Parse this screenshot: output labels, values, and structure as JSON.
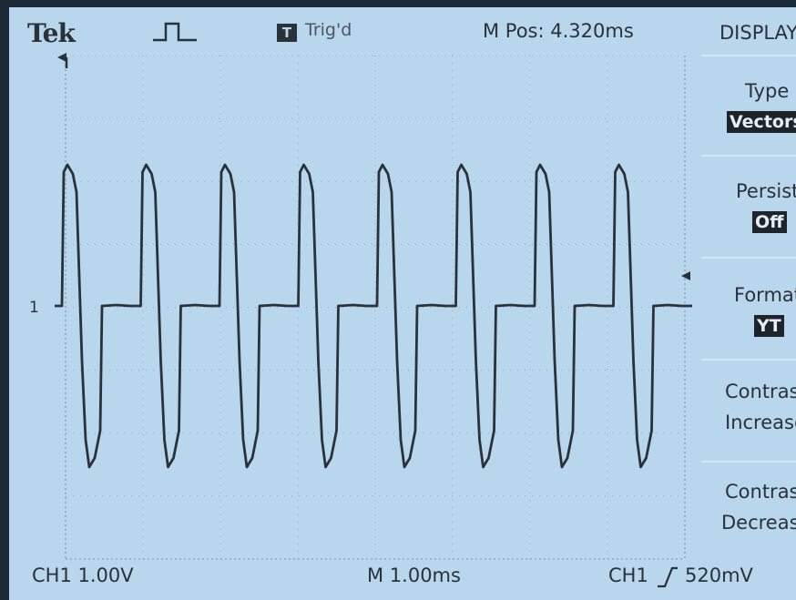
{
  "header": {
    "brand": "Tek",
    "trigger_status": "Trig'd",
    "trigger_icon": "T",
    "m_pos": "M Pos: 4.320ms",
    "menu_title": "DISPLAY"
  },
  "menu": {
    "items": [
      {
        "label": "Type",
        "value": "Vectors"
      },
      {
        "label": "Persist",
        "value": "Off"
      },
      {
        "label": "Format",
        "value": "YT"
      },
      {
        "label": "Contrast",
        "value2": "Increase"
      },
      {
        "label": "Contrast",
        "value2": "Decrease"
      }
    ]
  },
  "footer": {
    "ch1_scale": "CH1  1.00V",
    "time_scale": "M 1.00ms",
    "trigger_source": "CH1",
    "trigger_level": "520mV"
  },
  "ch1_marker": "1",
  "colors": {
    "screen_bg": "#b8d7ec",
    "trace": "#2b3138",
    "grid": "#8ea9be"
  }
}
